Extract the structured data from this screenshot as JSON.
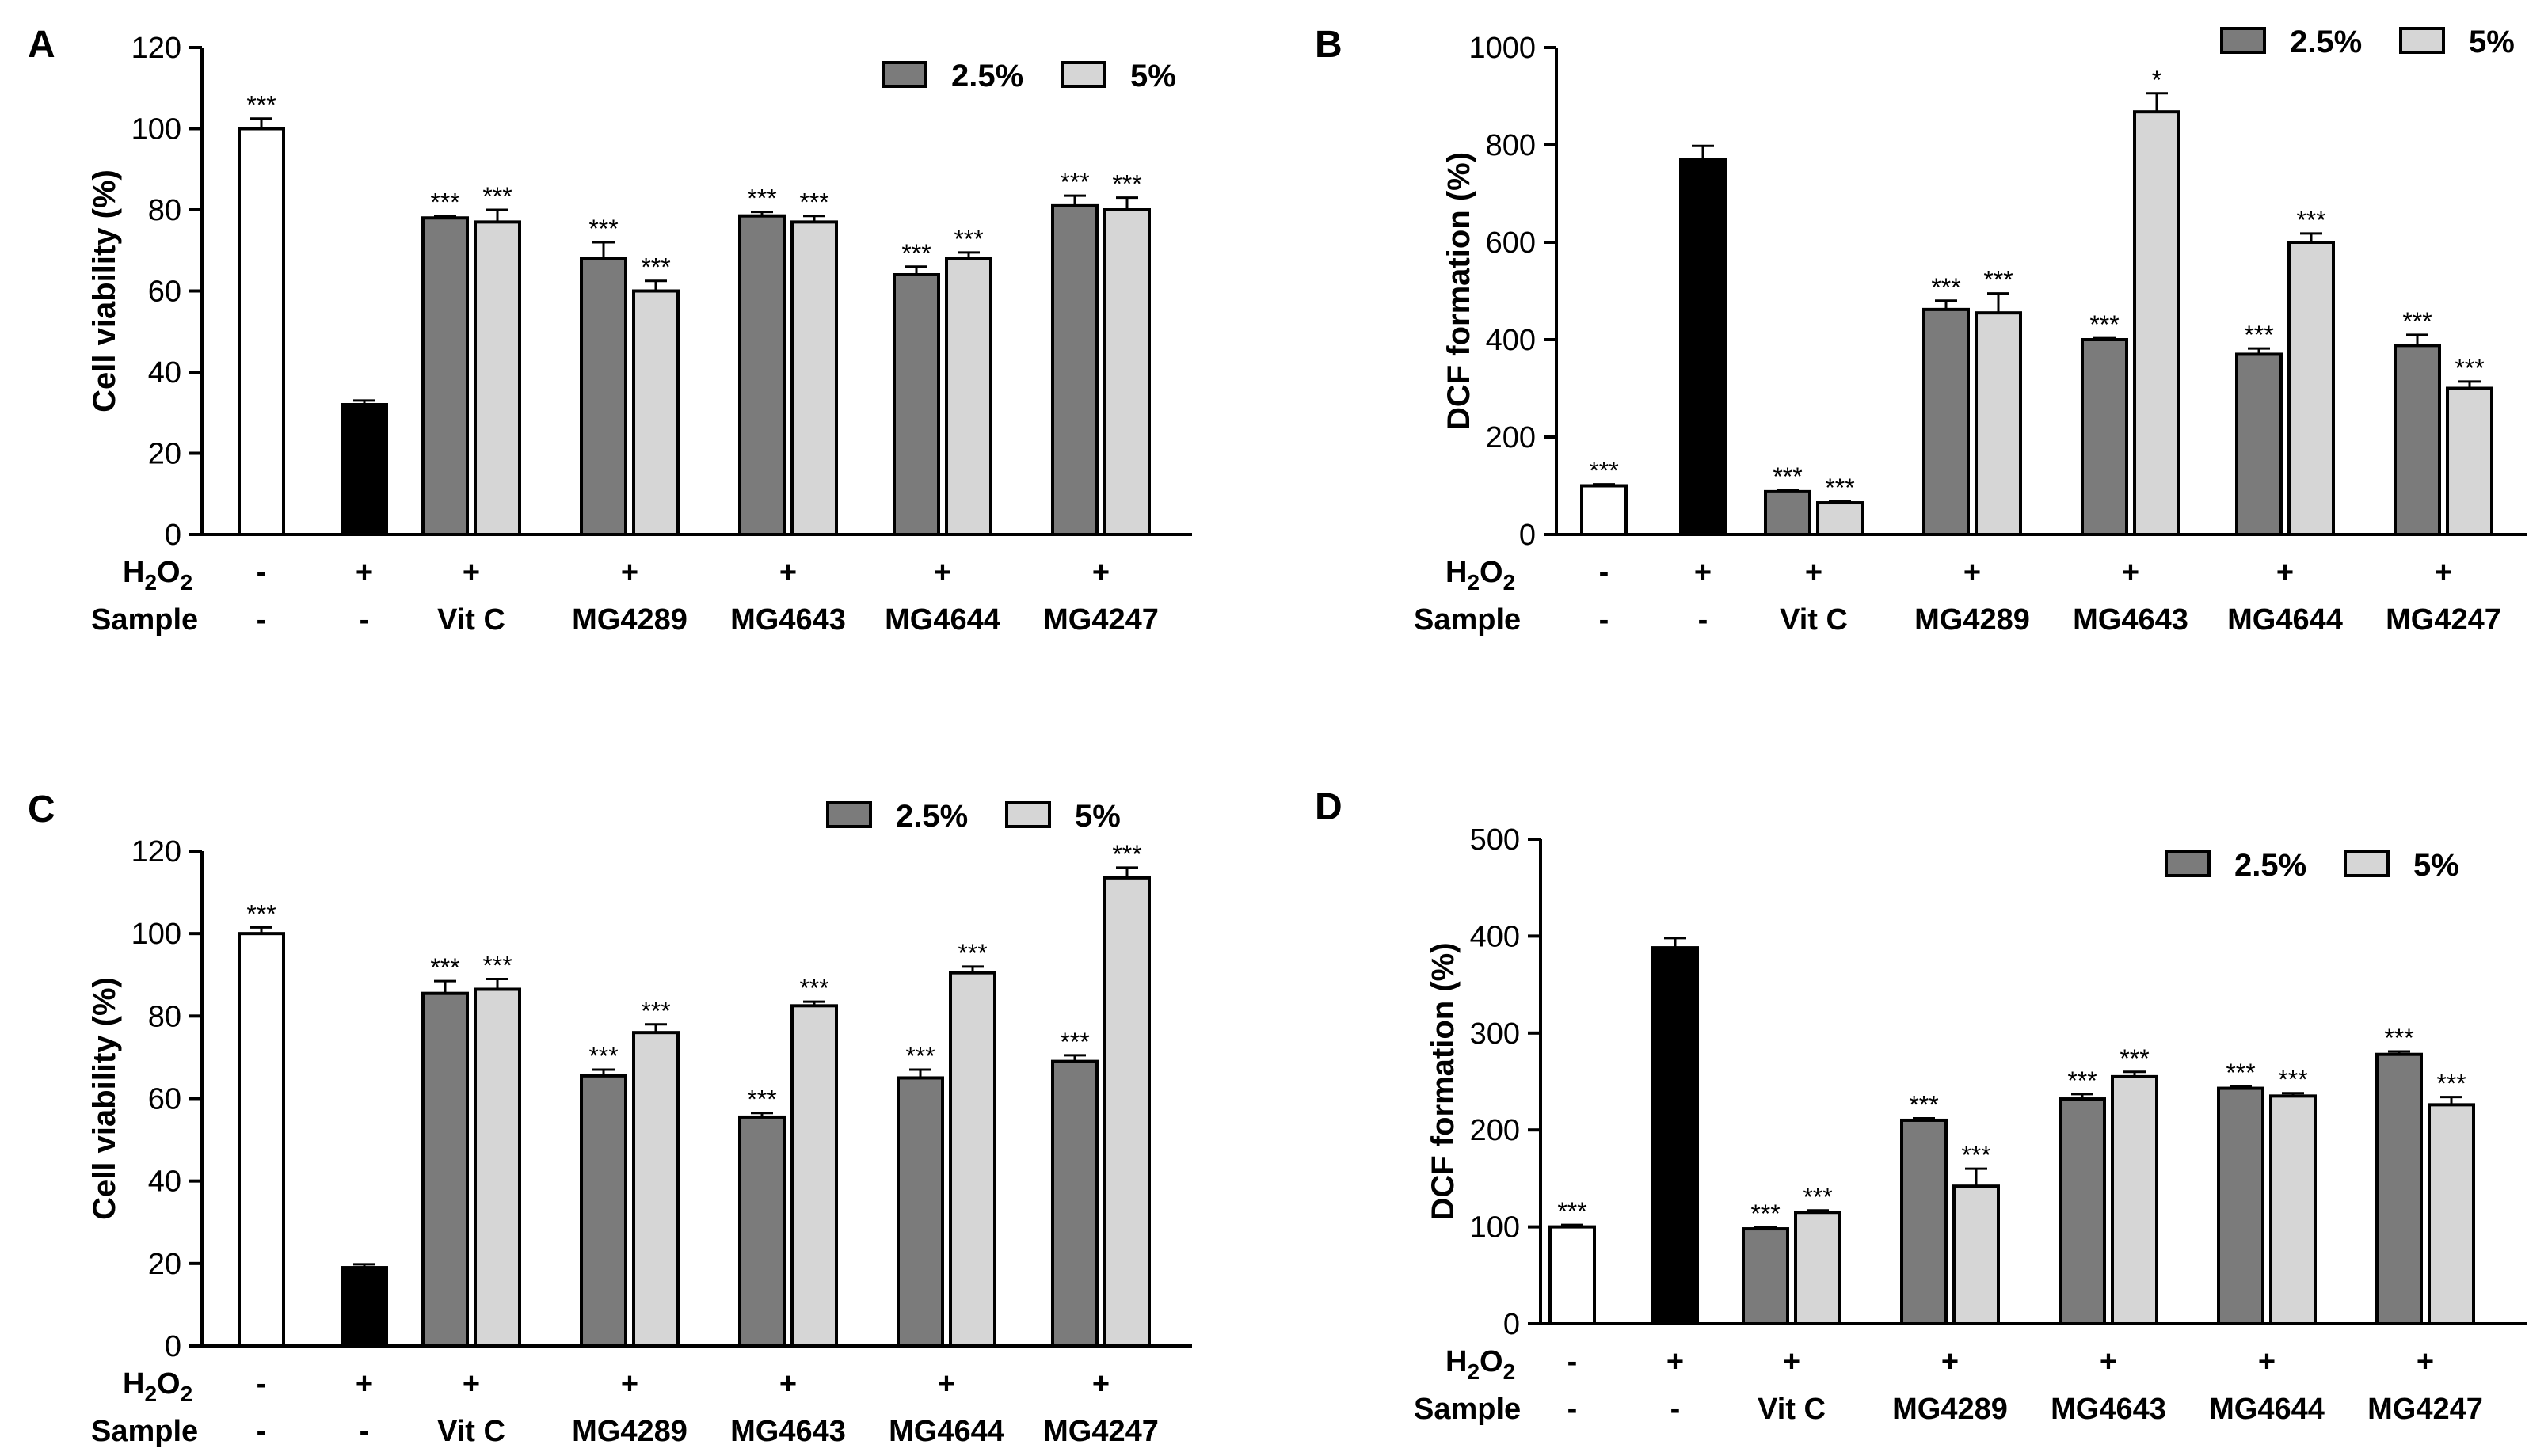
{
  "chart_data": [
    {
      "panel": "A",
      "type": "bar",
      "ylabel": "Cell viability (%)",
      "ylim": [
        0,
        120
      ],
      "yticks": [
        0,
        20,
        40,
        60,
        80,
        100,
        120
      ],
      "legend": {
        "placement": "top-right",
        "entries": [
          "2.5%",
          "5%"
        ]
      },
      "row_labels": {
        "h2o2": "H2O2",
        "sample": "Sample"
      },
      "groups": [
        {
          "h2o2": "-",
          "sample": "-",
          "bars": [
            {
              "series": "control",
              "value": 100,
              "error": 2.5,
              "sig": "***"
            }
          ]
        },
        {
          "h2o2": "+",
          "sample": "-",
          "bars": [
            {
              "series": "h2o2",
              "value": 32,
              "error": 1,
              "sig": ""
            }
          ]
        },
        {
          "h2o2": "+",
          "sample": "Vit C",
          "bars": [
            {
              "series": "2.5%",
              "value": 78,
              "error": 0.5,
              "sig": "***"
            },
            {
              "series": "5%",
              "value": 77,
              "error": 3,
              "sig": "***"
            }
          ]
        },
        {
          "h2o2": "+",
          "sample": "MG4289",
          "bars": [
            {
              "series": "2.5%",
              "value": 68,
              "error": 4,
              "sig": "***"
            },
            {
              "series": "5%",
              "value": 60,
              "error": 2.5,
              "sig": "***"
            }
          ]
        },
        {
          "h2o2": "+",
          "sample": "MG4643",
          "bars": [
            {
              "series": "2.5%",
              "value": 78.5,
              "error": 1,
              "sig": "***"
            },
            {
              "series": "5%",
              "value": 77,
              "error": 1.5,
              "sig": "***"
            }
          ]
        },
        {
          "h2o2": "+",
          "sample": "MG4644",
          "bars": [
            {
              "series": "2.5%",
              "value": 64,
              "error": 2,
              "sig": "***"
            },
            {
              "series": "5%",
              "value": 68,
              "error": 1.5,
              "sig": "***"
            }
          ]
        },
        {
          "h2o2": "+",
          "sample": "MG4247",
          "bars": [
            {
              "series": "2.5%",
              "value": 81,
              "error": 2.5,
              "sig": "***"
            },
            {
              "series": "5%",
              "value": 80,
              "error": 3,
              "sig": "***"
            }
          ]
        }
      ]
    },
    {
      "panel": "B",
      "type": "bar",
      "ylabel": "DCF formation (%)",
      "ylim": [
        0,
        1000
      ],
      "yticks": [
        0,
        200,
        400,
        600,
        800,
        1000
      ],
      "legend": {
        "placement": "top-right",
        "entries": [
          "2.5%",
          "5%"
        ]
      },
      "row_labels": {
        "h2o2": "H2O2",
        "sample": "Sample"
      },
      "groups": [
        {
          "h2o2": "-",
          "sample": "-",
          "bars": [
            {
              "series": "control",
              "value": 100,
              "error": 3,
              "sig": "***"
            }
          ]
        },
        {
          "h2o2": "+",
          "sample": "-",
          "bars": [
            {
              "series": "h2o2",
              "value": 770,
              "error": 28,
              "sig": ""
            }
          ]
        },
        {
          "h2o2": "+",
          "sample": "Vit C",
          "bars": [
            {
              "series": "2.5%",
              "value": 88,
              "error": 3,
              "sig": "***"
            },
            {
              "series": "5%",
              "value": 65,
              "error": 3,
              "sig": "***"
            }
          ]
        },
        {
          "h2o2": "+",
          "sample": "MG4289",
          "bars": [
            {
              "series": "2.5%",
              "value": 462,
              "error": 18,
              "sig": "***"
            },
            {
              "series": "5%",
              "value": 455,
              "error": 40,
              "sig": "***"
            }
          ]
        },
        {
          "h2o2": "+",
          "sample": "MG4643",
          "bars": [
            {
              "series": "2.5%",
              "value": 400,
              "error": 3,
              "sig": "***"
            },
            {
              "series": "5%",
              "value": 868,
              "error": 38,
              "sig": "*"
            }
          ]
        },
        {
          "h2o2": "+",
          "sample": "MG4644",
          "bars": [
            {
              "series": "2.5%",
              "value": 370,
              "error": 12,
              "sig": "***"
            },
            {
              "series": "5%",
              "value": 600,
              "error": 18,
              "sig": "***"
            }
          ]
        },
        {
          "h2o2": "+",
          "sample": "MG4247",
          "bars": [
            {
              "series": "2.5%",
              "value": 388,
              "error": 22,
              "sig": "***"
            },
            {
              "series": "5%",
              "value": 300,
              "error": 14,
              "sig": "***"
            }
          ]
        }
      ]
    },
    {
      "panel": "C",
      "type": "bar",
      "ylabel": "Cell viability (%)",
      "ylim": [
        0,
        120
      ],
      "yticks": [
        0,
        20,
        40,
        60,
        80,
        100,
        120
      ],
      "legend": {
        "placement": "top-right",
        "entries": [
          "2.5%",
          "5%"
        ]
      },
      "row_labels": {
        "h2o2": "H2O2",
        "sample": "Sample"
      },
      "groups": [
        {
          "h2o2": "-",
          "sample": "-",
          "bars": [
            {
              "series": "control",
              "value": 100,
              "error": 1.5,
              "sig": "***"
            }
          ]
        },
        {
          "h2o2": "+",
          "sample": "-",
          "bars": [
            {
              "series": "h2o2",
              "value": 19,
              "error": 0.8,
              "sig": ""
            }
          ]
        },
        {
          "h2o2": "+",
          "sample": "Vit C",
          "bars": [
            {
              "series": "2.5%",
              "value": 85.5,
              "error": 3,
              "sig": "***"
            },
            {
              "series": "5%",
              "value": 86.5,
              "error": 2.5,
              "sig": "***"
            }
          ]
        },
        {
          "h2o2": "+",
          "sample": "MG4289",
          "bars": [
            {
              "series": "2.5%",
              "value": 65.5,
              "error": 1.5,
              "sig": "***"
            },
            {
              "series": "5%",
              "value": 76,
              "error": 2,
              "sig": "***"
            }
          ]
        },
        {
          "h2o2": "+",
          "sample": "MG4643",
          "bars": [
            {
              "series": "2.5%",
              "value": 55.5,
              "error": 1,
              "sig": "***"
            },
            {
              "series": "5%",
              "value": 82.5,
              "error": 1,
              "sig": "***"
            }
          ]
        },
        {
          "h2o2": "+",
          "sample": "MG4644",
          "bars": [
            {
              "series": "2.5%",
              "value": 65,
              "error": 2,
              "sig": "***"
            },
            {
              "series": "5%",
              "value": 90.5,
              "error": 1.5,
              "sig": "***"
            }
          ]
        },
        {
          "h2o2": "+",
          "sample": "MG4247",
          "bars": [
            {
              "series": "2.5%",
              "value": 69,
              "error": 1.5,
              "sig": "***"
            },
            {
              "series": "5%",
              "value": 113.5,
              "error": 2.5,
              "sig": "***"
            }
          ]
        }
      ]
    },
    {
      "panel": "D",
      "type": "bar",
      "ylabel": "DCF formation (%)",
      "ylim": [
        0,
        500
      ],
      "yticks": [
        0,
        100,
        200,
        300,
        400,
        500
      ],
      "legend": {
        "placement": "top-right",
        "entries": [
          "2.5%",
          "5%"
        ]
      },
      "row_labels": {
        "h2o2": "H2O2",
        "sample": "Sample"
      },
      "groups": [
        {
          "h2o2": "-",
          "sample": "-",
          "bars": [
            {
              "series": "control",
              "value": 100,
              "error": 2,
              "sig": "***"
            }
          ]
        },
        {
          "h2o2": "+",
          "sample": "-",
          "bars": [
            {
              "series": "h2o2",
              "value": 388,
              "error": 10,
              "sig": ""
            }
          ]
        },
        {
          "h2o2": "+",
          "sample": "Vit C",
          "bars": [
            {
              "series": "2.5%",
              "value": 98,
              "error": 1.5,
              "sig": "***"
            },
            {
              "series": "5%",
              "value": 115,
              "error": 2,
              "sig": "***"
            }
          ]
        },
        {
          "h2o2": "+",
          "sample": "MG4289",
          "bars": [
            {
              "series": "2.5%",
              "value": 210,
              "error": 2,
              "sig": "***"
            },
            {
              "series": "5%",
              "value": 142,
              "error": 18,
              "sig": "***"
            }
          ]
        },
        {
          "h2o2": "+",
          "sample": "MG4643",
          "bars": [
            {
              "series": "2.5%",
              "value": 232,
              "error": 5,
              "sig": "***"
            },
            {
              "series": "5%",
              "value": 255,
              "error": 5,
              "sig": "***"
            }
          ]
        },
        {
          "h2o2": "+",
          "sample": "MG4644",
          "bars": [
            {
              "series": "2.5%",
              "value": 243,
              "error": 2,
              "sig": "***"
            },
            {
              "series": "5%",
              "value": 235,
              "error": 3,
              "sig": "***"
            }
          ]
        },
        {
          "h2o2": "+",
          "sample": "MG4247",
          "bars": [
            {
              "series": "2.5%",
              "value": 278,
              "error": 3,
              "sig": "***"
            },
            {
              "series": "5%",
              "value": 226,
              "error": 8,
              "sig": "***"
            }
          ]
        }
      ]
    }
  ],
  "colors": {
    "control": "#ffffff",
    "h2o2": "#000000",
    "dark": "#7b7b7b",
    "light": "#d6d6d6",
    "stroke": "#000000"
  }
}
